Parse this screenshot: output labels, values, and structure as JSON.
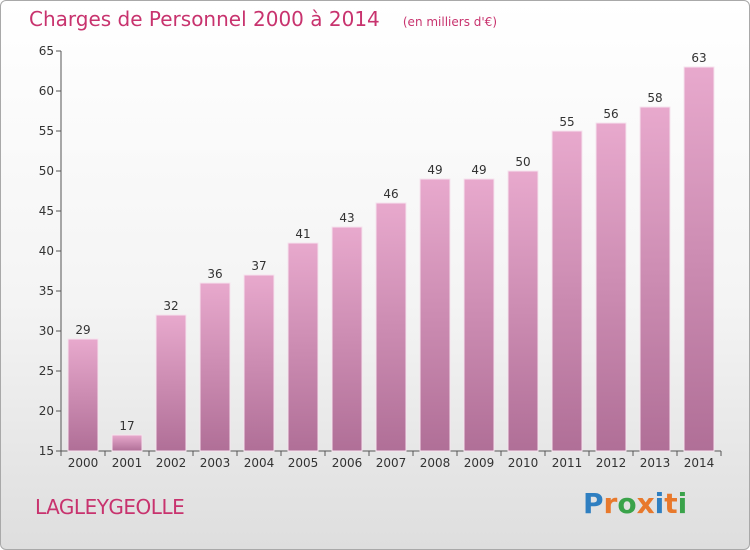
{
  "title": "Charges de Personnel 2000 à 2014",
  "subtitle": "(en milliers d'€)",
  "commune": "LAGLEYGEOLLE",
  "logo": {
    "text": "Proxiti",
    "colors": [
      "#2f7fc1",
      "#e8792c",
      "#3aa34a",
      "#e8792c",
      "#2f7fc1",
      "#e8792c",
      "#3aa34a"
    ]
  },
  "colors": {
    "title": "#c8336e",
    "bar_top": "#e8a9cd",
    "bar_bottom": "#b06f97",
    "axis": "#555555"
  },
  "chart_data": {
    "type": "bar",
    "categories": [
      "2000",
      "2001",
      "2002",
      "2003",
      "2004",
      "2005",
      "2006",
      "2007",
      "2008",
      "2009",
      "2010",
      "2011",
      "2012",
      "2013",
      "2014"
    ],
    "values": [
      29,
      17,
      32,
      36,
      37,
      41,
      43,
      46,
      49,
      49,
      50,
      55,
      56,
      58,
      63
    ],
    "ylim": [
      15,
      65
    ],
    "yticks": [
      15,
      20,
      25,
      30,
      35,
      40,
      45,
      50,
      55,
      60,
      65
    ],
    "data_labels": true,
    "grid": false
  }
}
